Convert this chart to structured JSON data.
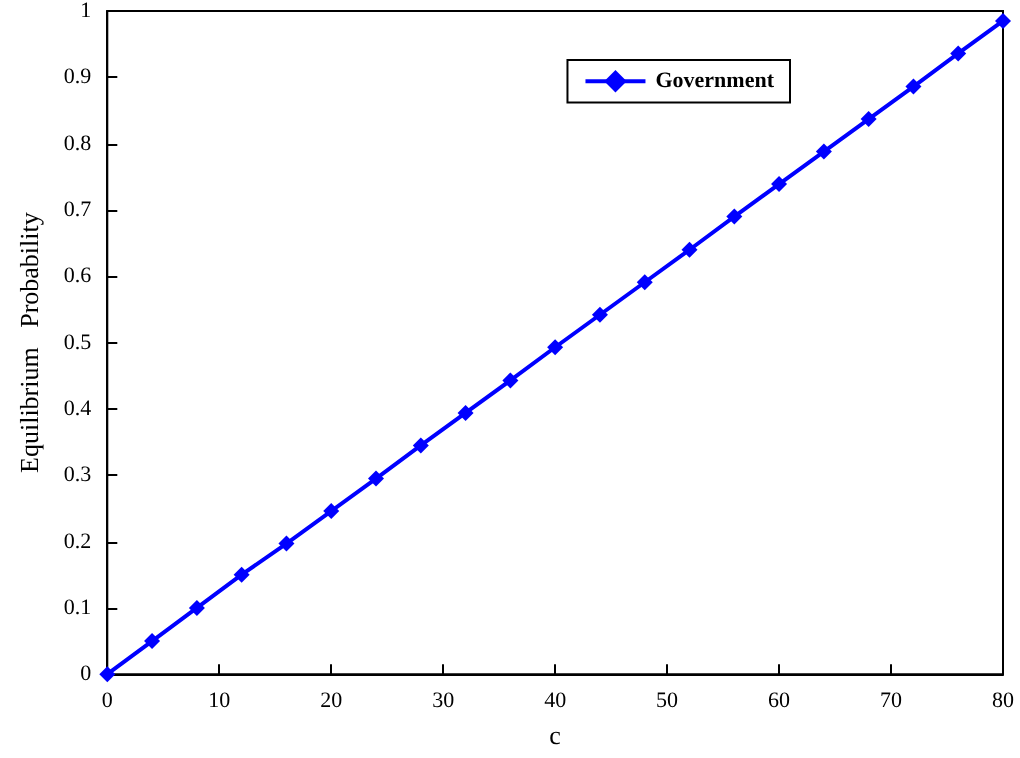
{
  "chart_data": {
    "type": "line",
    "xlabel": "c",
    "ylabel": "Equilibrium   Probability",
    "x": [
      0,
      4,
      8,
      12,
      16,
      20,
      24,
      28,
      32,
      36,
      40,
      44,
      48,
      52,
      56,
      60,
      64,
      68,
      72,
      76,
      80
    ],
    "series": [
      {
        "name": "Government",
        "color": "#0000ff",
        "values": [
          0,
          0.05,
          0.1,
          0.15,
          0.197,
          0.246,
          0.295,
          0.345,
          0.394,
          0.443,
          0.493,
          0.542,
          0.591,
          0.64,
          0.69,
          0.739,
          0.788,
          0.837,
          0.886,
          0.936,
          0.985
        ]
      }
    ],
    "xlim": [
      0,
      80
    ],
    "xticks": [
      0,
      10,
      20,
      30,
      40,
      50,
      60,
      70,
      80
    ],
    "ylim": [
      0,
      1
    ],
    "yticks": [
      0,
      0.1,
      0.2,
      0.3,
      0.4,
      0.5,
      0.6,
      0.7,
      0.8,
      0.9,
      1
    ],
    "legend": "top right",
    "marker": "diamond",
    "line_style": "solid",
    "grid": false
  }
}
